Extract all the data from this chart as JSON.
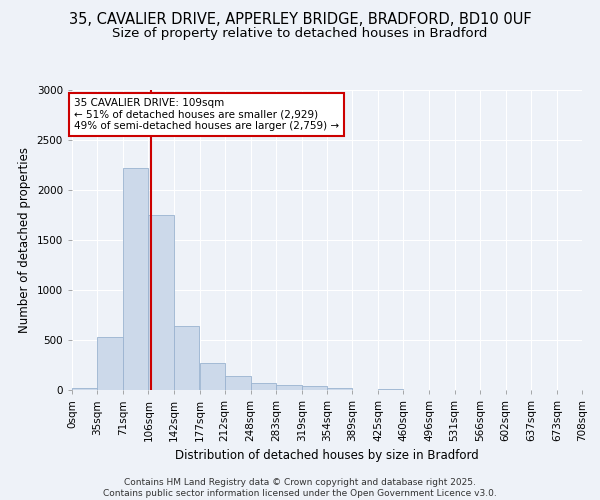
{
  "title_line1": "35, CAVALIER DRIVE, APPERLEY BRIDGE, BRADFORD, BD10 0UF",
  "title_line2": "Size of property relative to detached houses in Bradford",
  "xlabel": "Distribution of detached houses by size in Bradford",
  "ylabel": "Number of detached properties",
  "bar_color": "#ccd9ea",
  "bar_edge_color": "#9ab3d0",
  "vline_color": "#cc0000",
  "vline_x": 109,
  "annotation_text": "35 CAVALIER DRIVE: 109sqm\n← 51% of detached houses are smaller (2,929)\n49% of semi-detached houses are larger (2,759) →",
  "annotation_box_facecolor": "#ffffff",
  "annotation_box_edgecolor": "#cc0000",
  "bin_edges": [
    0,
    35,
    71,
    106,
    142,
    177,
    212,
    248,
    283,
    319,
    354,
    389,
    425,
    460,
    496,
    531,
    566,
    602,
    637,
    673,
    708
  ],
  "bar_heights": [
    22,
    527,
    2220,
    1750,
    640,
    270,
    142,
    75,
    52,
    38,
    22,
    4,
    14,
    4,
    0,
    0,
    0,
    0,
    0,
    0
  ],
  "ylim": [
    0,
    3000
  ],
  "yticks": [
    0,
    500,
    1000,
    1500,
    2000,
    2500,
    3000
  ],
  "background_color": "#eef2f8",
  "grid_color": "#ffffff",
  "footer": "Contains HM Land Registry data © Crown copyright and database right 2025.\nContains public sector information licensed under the Open Government Licence v3.0.",
  "title_fontsize": 10.5,
  "subtitle_fontsize": 9.5,
  "axis_label_fontsize": 8.5,
  "tick_fontsize": 7.5,
  "footer_fontsize": 6.5
}
